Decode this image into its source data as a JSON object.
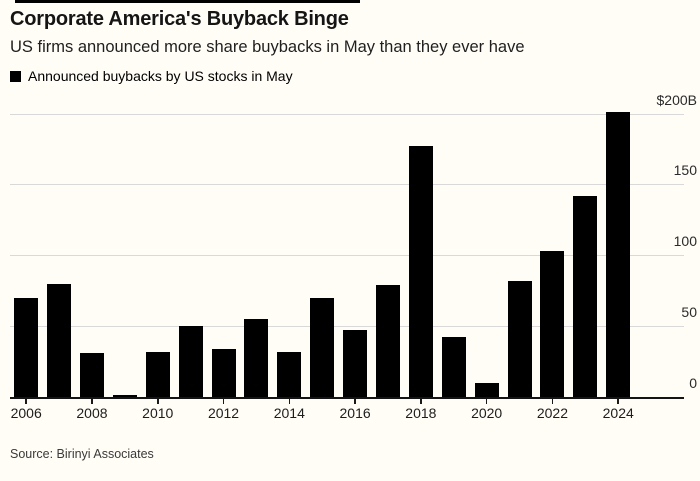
{
  "header": {
    "title": "Corporate America's Buyback Binge",
    "subtitle": "US firms announced more share buybacks in May than they ever have"
  },
  "legend": {
    "label": "Announced buybacks by US stocks in May",
    "marker": "black-square",
    "marker_color": "#000000"
  },
  "chart_data": {
    "type": "bar",
    "title": "Corporate America's Buyback Binge",
    "subtitle": "US firms announced more share buybacks in May than they ever have",
    "series_name": "Announced buybacks by US stocks in May",
    "categories": [
      "2006",
      "2007",
      "2008",
      "2009",
      "2010",
      "2011",
      "2012",
      "2013",
      "2014",
      "2015",
      "2016",
      "2017",
      "2018",
      "2019",
      "2020",
      "2021",
      "2022",
      "2023",
      "2024"
    ],
    "values": [
      70,
      80,
      31,
      1,
      32,
      50,
      34,
      55,
      32,
      70,
      47,
      79,
      177,
      42,
      10,
      82,
      103,
      142,
      201
    ],
    "unit": "billions USD",
    "bar_color": "#000000",
    "grid": "horizontal",
    "legend_position": "top-left",
    "y_axis": {
      "side": "right",
      "ylim": [
        0,
        200
      ],
      "ticks": [
        200,
        150,
        100,
        50,
        0
      ],
      "tick_labels": [
        "$200B",
        "150",
        "100",
        "50",
        "0"
      ]
    },
    "x_axis": {
      "tick_labels": [
        "2006",
        "2008",
        "2010",
        "2012",
        "2014",
        "2016",
        "2018",
        "2020",
        "2022",
        "2024"
      ],
      "label_every_n_bars": 2
    }
  },
  "footer": {
    "source": "Source: Birinyi Associates"
  }
}
